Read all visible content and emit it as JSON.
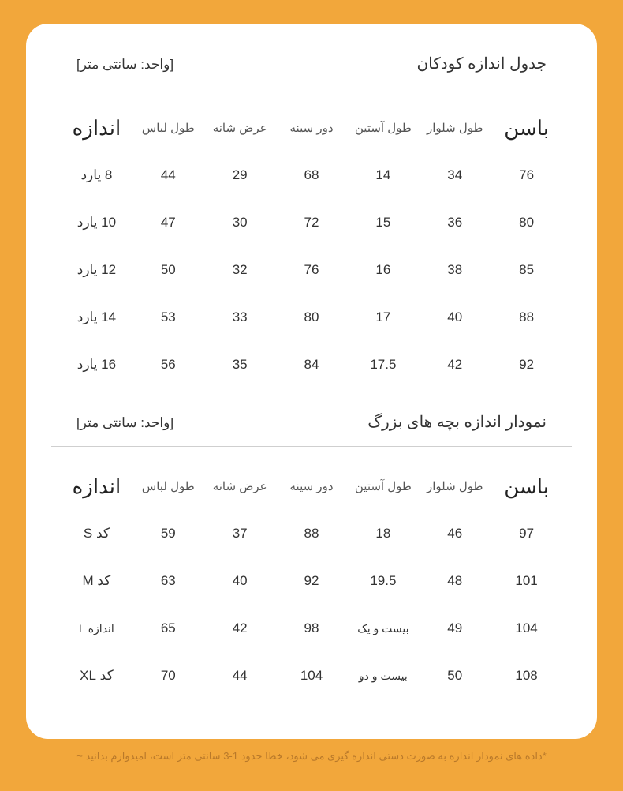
{
  "colors": {
    "page_bg": "#f2a73b",
    "card_bg": "#ffffff",
    "text_primary": "#333333",
    "text_secondary": "#555555",
    "divider": "#cfcfcf",
    "footer": "#b9792a"
  },
  "typography": {
    "title_fontsize": 20,
    "unit_fontsize": 17,
    "head_large_fontsize": 26,
    "head_small_fontsize": 15,
    "cell_fontsize": 17,
    "footer_fontsize": 13
  },
  "table1": {
    "title": "جدول اندازه کودکان",
    "unit": "[واحد: سانتی متر]",
    "columns": {
      "c0": "اندازه",
      "c1": "طول لباس",
      "c2": "عرض شانه",
      "c3": "دور سینه",
      "c4": "طول آستین",
      "c5": "طول شلوار",
      "c6": "باسن"
    },
    "rows": [
      {
        "c0": "8 یارد",
        "c1": "44",
        "c2": "29",
        "c3": "68",
        "c4": "14",
        "c5": "34",
        "c6": "76"
      },
      {
        "c0": "10 یارد",
        "c1": "47",
        "c2": "30",
        "c3": "72",
        "c4": "15",
        "c5": "36",
        "c6": "80"
      },
      {
        "c0": "12 یارد",
        "c1": "50",
        "c2": "32",
        "c3": "76",
        "c4": "16",
        "c5": "38",
        "c6": "85"
      },
      {
        "c0": "14 یارد",
        "c1": "53",
        "c2": "33",
        "c3": "80",
        "c4": "17",
        "c5": "40",
        "c6": "88"
      },
      {
        "c0": "16 یارد",
        "c1": "56",
        "c2": "35",
        "c3": "84",
        "c4": "17.5",
        "c5": "42",
        "c6": "92"
      }
    ]
  },
  "table2": {
    "title": "نمودار اندازه بچه های بزرگ",
    "unit": "[واحد: سانتی متر]",
    "columns": {
      "c0": "اندازه",
      "c1": "طول لباس",
      "c2": "عرض شانه",
      "c3": "دور سینه",
      "c4": "طول آستین",
      "c5": "طول شلوار",
      "c6": "باسن"
    },
    "rows": [
      {
        "c0": "کد S",
        "c1": "59",
        "c2": "37",
        "c3": "88",
        "c4": "18",
        "c5": "46",
        "c6": "97"
      },
      {
        "c0": "کد M",
        "c1": "63",
        "c2": "40",
        "c3": "92",
        "c4": "19.5",
        "c5": "48",
        "c6": "101"
      },
      {
        "c0": "اندازه L",
        "c1": "65",
        "c2": "42",
        "c3": "98",
        "c4": "بیست و یک",
        "c5": "49",
        "c6": "104",
        "tiny0": true,
        "tiny4": true
      },
      {
        "c0": "کد XL",
        "c1": "70",
        "c2": "44",
        "c3": "104",
        "c4": "بیست و دو",
        "c5": "50",
        "c6": "108",
        "tiny4": true
      }
    ]
  },
  "footer_note": "*داده های نمودار اندازه به صورت دستی اندازه گیری می شود، خطا حدود 1-3 سانتی متر است، امیدوارم بدانید ~"
}
